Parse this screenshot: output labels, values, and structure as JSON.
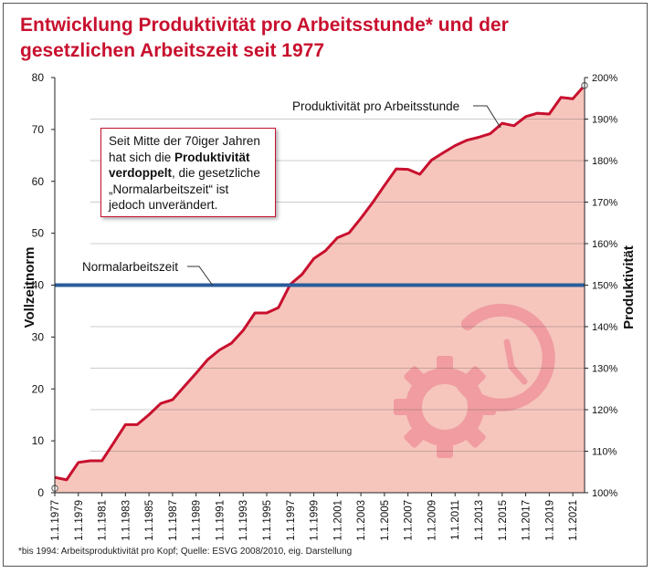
{
  "title_line1": "Entwicklung Produktivität pro Arbeitsstunde* und der",
  "title_line2": "gesetzlichen Arbeitszeit seit 1977",
  "footnote": "*bis 1994: Arbeitsproduktivität pro Kopf; Quelle: ESVG 2008/2010, eig. Darstellung",
  "callout": {
    "part1": "Seit Mitte der 70iger Jahren hat sich die ",
    "bold": "Produktivität verdoppelt",
    "part2": ", die gesetzliche „Normalarbeitszeit“ ist jedoch unverändert."
  },
  "colors": {
    "title": "#c8102e",
    "area_fill": "#f6c6bd",
    "line": "#c8102e",
    "norm_line": "#2a5d9b",
    "watermark": "#ee8f98"
  },
  "chart_data": {
    "type": "area",
    "ylabel_left": "Vollzeitnorm",
    "ylabel_right": "Produktivität",
    "ylim_left": [
      0,
      80
    ],
    "yticks_left": [
      "0",
      "10",
      "20",
      "30",
      "40",
      "50",
      "60",
      "70",
      "80"
    ],
    "ylim_right": [
      100,
      200
    ],
    "yticks_right": [
      "100%",
      "110%",
      "120%",
      "130%",
      "140%",
      "150%",
      "160%",
      "170%",
      "180%",
      "190%",
      "200%"
    ],
    "xticks": [
      "1.1.1977",
      "1.1.1979",
      "1.1.1981",
      "1.1.1983",
      "1.1.1985",
      "1.1.1987",
      "1.1.1989",
      "1.1.1991",
      "1.1.1993",
      "1.1.1995",
      "1.1.1997",
      "1.1.1999",
      "1.1.2001",
      "1.1.2003",
      "1.1.2005",
      "1.1.2007",
      "1.1.2009",
      "1.1.2011",
      "1.1.2013",
      "1.1.2015",
      "1.1.2017",
      "1.1.2019",
      "1.1.2021"
    ],
    "series": [
      {
        "name": "Produktivität pro Arbeitsstunde",
        "x": [
          1977,
          1978,
          1979,
          1980,
          1981,
          1982,
          1983,
          1984,
          1985,
          1986,
          1987,
          1988,
          1989,
          1990,
          1991,
          1992,
          1993,
          1994,
          1995,
          1996,
          1997,
          1998,
          1999,
          2000,
          2001,
          2002,
          2003,
          2004,
          2005,
          2006,
          2007,
          2008,
          2009,
          2010,
          2011,
          2012,
          2013,
          2014,
          2015,
          2016,
          2017,
          2018,
          2019,
          2020,
          2021,
          2022
        ],
        "values": [
          103.7,
          103.1,
          107.3,
          107.7,
          107.7,
          112.0,
          116.4,
          116.4,
          118.8,
          121.5,
          122.4,
          125.6,
          128.8,
          132.1,
          134.4,
          136.0,
          139.1,
          143.3,
          143.3,
          144.6,
          150.2,
          152.6,
          156.4,
          158.3,
          161.4,
          162.6,
          166.1,
          169.9,
          174.0,
          178.0,
          177.9,
          176.7,
          180.1,
          181.9,
          183.6,
          184.9,
          185.6,
          186.5,
          189.0,
          188.4,
          190.6,
          191.4,
          191.2,
          195.2,
          194.9,
          198.1
        ]
      },
      {
        "name": "Normalarbeitszeit",
        "values": [
          40
        ]
      }
    ],
    "grid": "horizontal at right-axis ticks"
  }
}
